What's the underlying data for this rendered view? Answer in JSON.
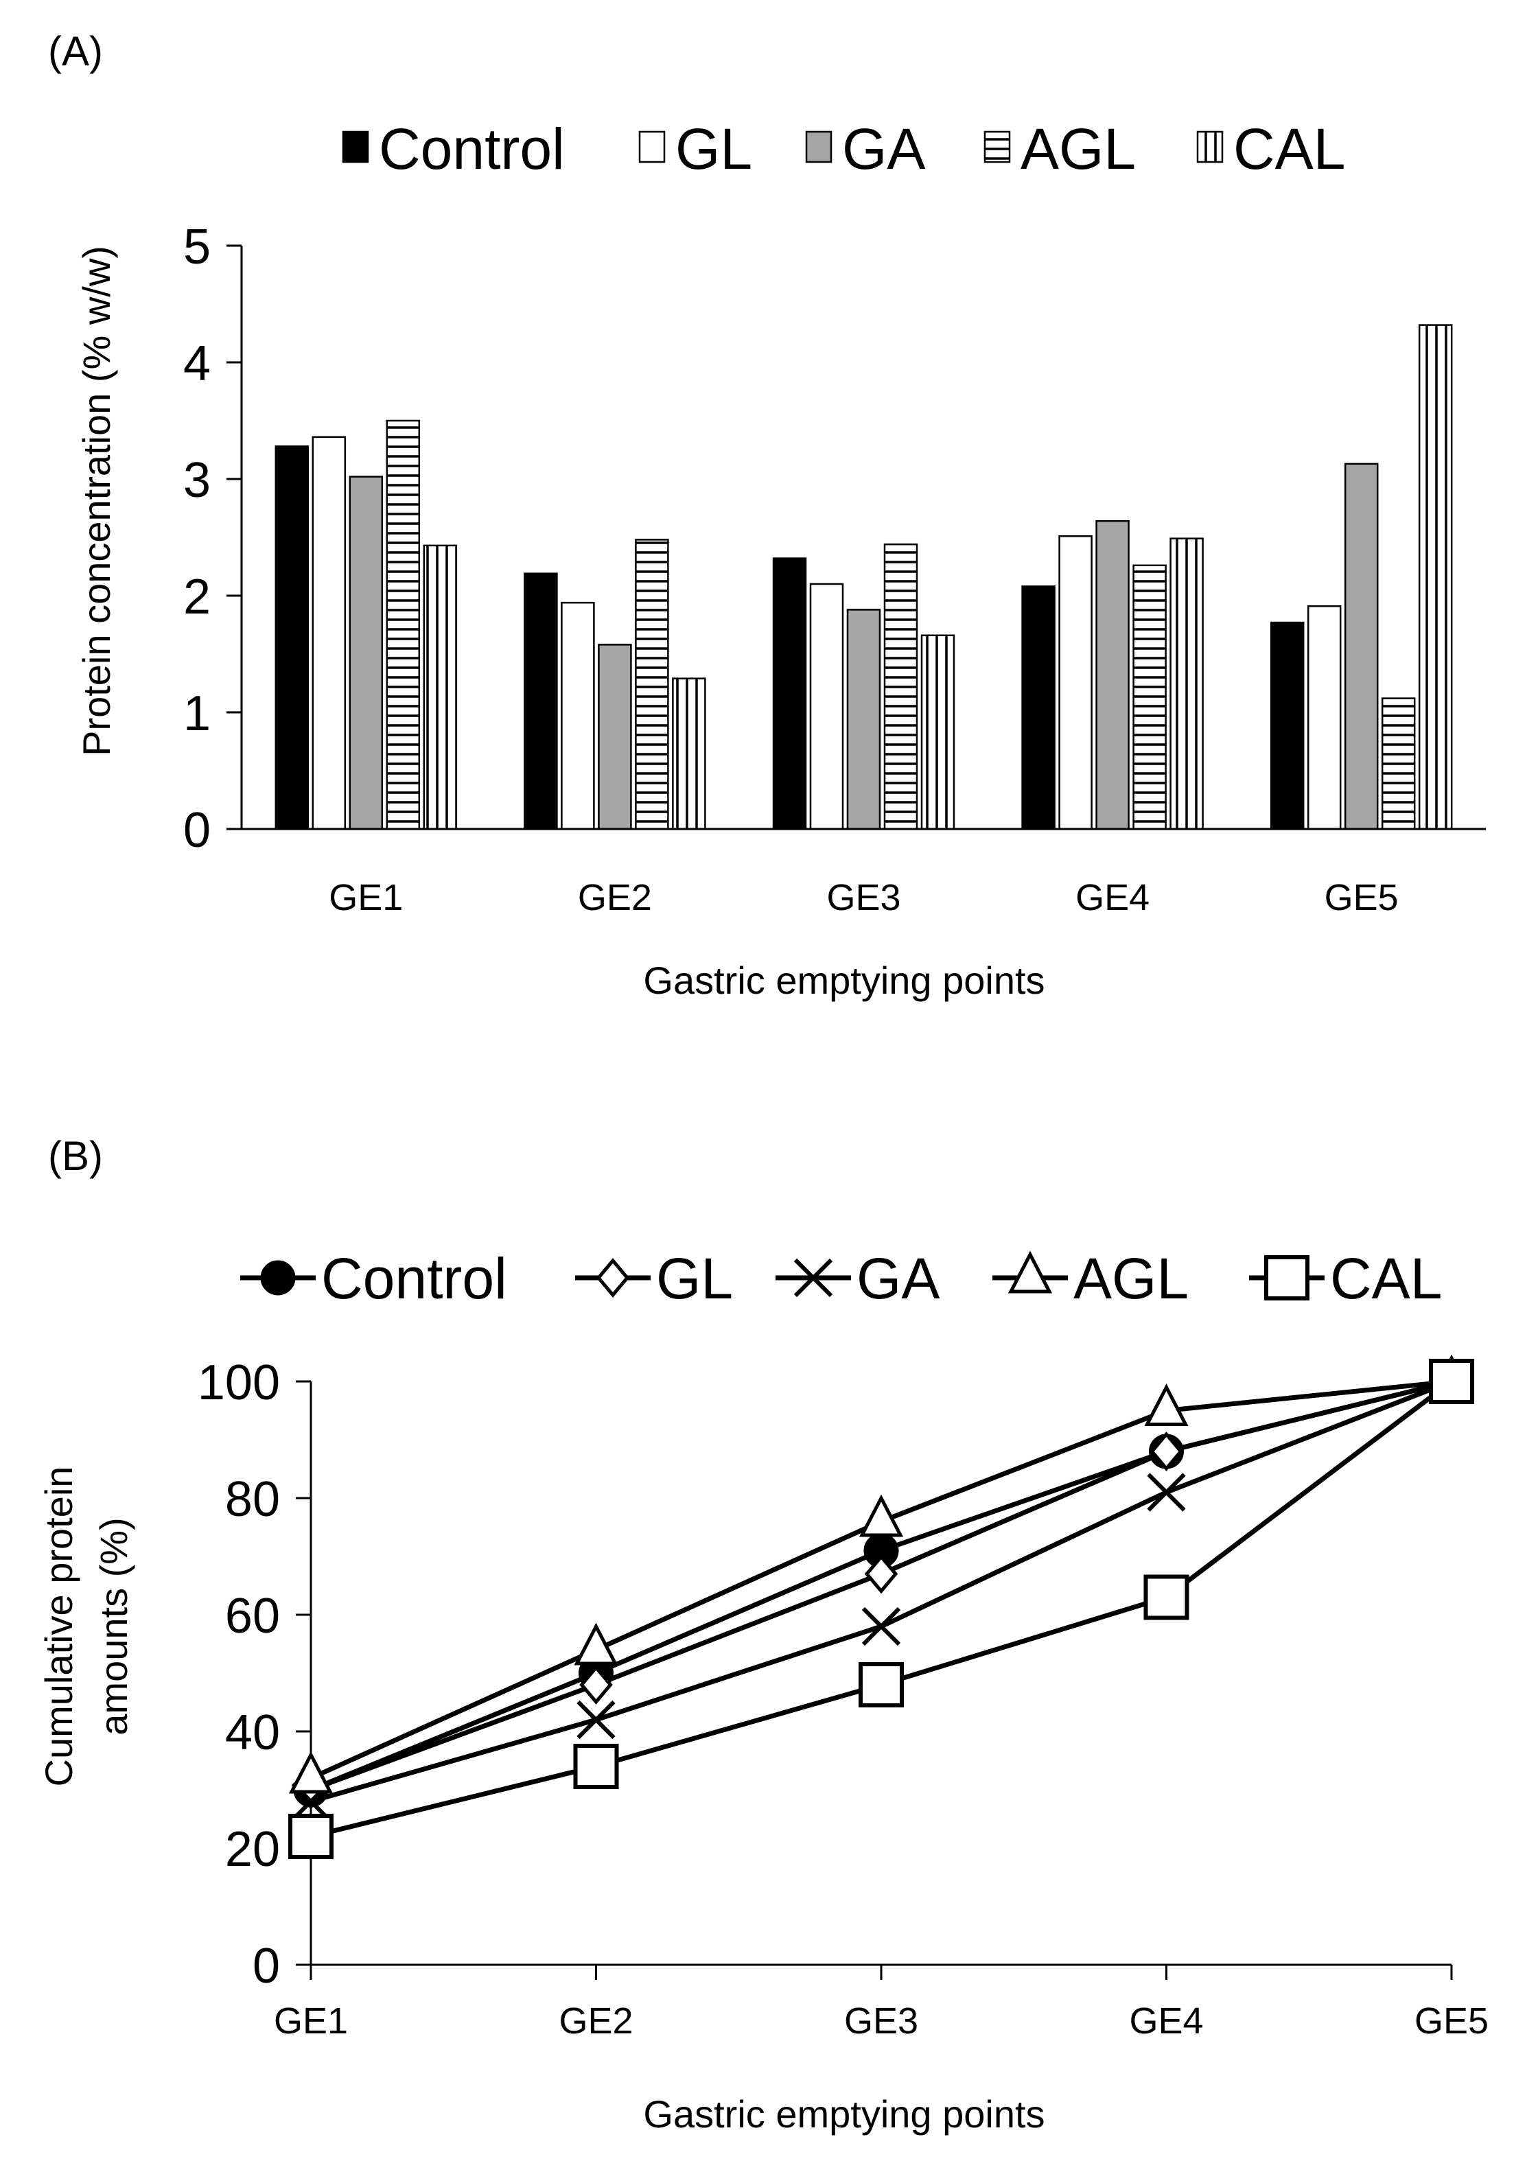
{
  "chart_data": [
    {
      "panel_label": "(A)",
      "type": "bar",
      "categories": [
        "GE1",
        "GE2",
        "GE3",
        "GE4",
        "GE5"
      ],
      "series": [
        {
          "name": "Control",
          "fill": "solid-black",
          "values": [
            3.28,
            2.19,
            2.32,
            2.08,
            1.77
          ]
        },
        {
          "name": "GL",
          "fill": "white",
          "values": [
            3.36,
            1.94,
            2.1,
            2.51,
            1.91
          ]
        },
        {
          "name": "GA",
          "fill": "solid-gray",
          "values": [
            3.02,
            1.58,
            1.88,
            2.64,
            3.13
          ]
        },
        {
          "name": "AGL",
          "fill": "horizontal-stripes",
          "values": [
            3.5,
            2.48,
            2.44,
            2.26,
            1.12
          ]
        },
        {
          "name": "CAL",
          "fill": "vertical-stripes",
          "values": [
            2.43,
            1.29,
            1.66,
            2.49,
            4.32
          ]
        }
      ],
      "title": "",
      "xlabel": "Gastric emptying points",
      "ylabel": "Protein concentration (% w/w)",
      "ylim": [
        0,
        5
      ],
      "yticks": [
        "0",
        "1",
        "2",
        "3",
        "4",
        "5"
      ],
      "grid": false,
      "legend_position": "top"
    },
    {
      "panel_label": "(B)",
      "type": "line",
      "categories": [
        "GE1",
        "GE2",
        "GE3",
        "GE4",
        "GE5"
      ],
      "series": [
        {
          "name": "Control",
          "marker": "filled-circle",
          "values": [
            30,
            50,
            71,
            88,
            100
          ]
        },
        {
          "name": "GL",
          "marker": "open-diamond",
          "values": [
            30,
            48,
            67,
            88,
            100
          ]
        },
        {
          "name": "GA",
          "marker": "x",
          "values": [
            28,
            42,
            58,
            81,
            100
          ]
        },
        {
          "name": "AGL",
          "marker": "open-triangle",
          "values": [
            32,
            54,
            76,
            95,
            100
          ]
        },
        {
          "name": "CAL",
          "marker": "open-square",
          "values": [
            22,
            34,
            48,
            63,
            100
          ]
        }
      ],
      "title": "",
      "xlabel": "Gastric emptying points",
      "ylabel_lines": [
        "Cumulative protein",
        "amounts (%)"
      ],
      "ylim": [
        0,
        100
      ],
      "yticks": [
        "0",
        "20",
        "40",
        "60",
        "80",
        "100"
      ],
      "grid": false,
      "legend_position": "top"
    }
  ]
}
